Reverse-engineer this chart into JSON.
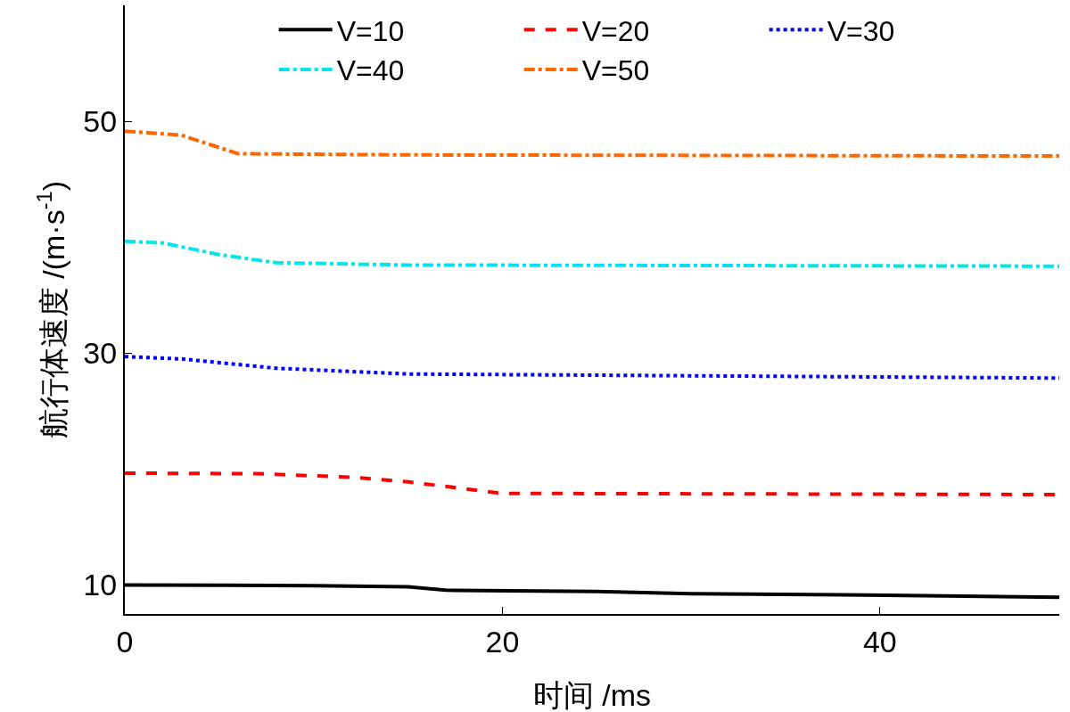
{
  "chart_data": {
    "type": "line",
    "xlabel": "时间 /ms",
    "ylabel": "航行体速度 /(m·s$^{-1}$)",
    "xlim": [
      0,
      49.5
    ],
    "ylim": [
      7.5,
      60
    ],
    "xticks": [
      0,
      20,
      40
    ],
    "yticks": [
      10,
      30,
      50
    ],
    "grid": false,
    "legend": "top",
    "marker": "none",
    "series": [
      {
        "name": "V=10",
        "color": "#000000",
        "line_style": "solid",
        "x": [
          0,
          10,
          15,
          17,
          25,
          30,
          38,
          49.5
        ],
        "values": [
          10,
          9.95,
          9.85,
          9.55,
          9.45,
          9.25,
          9.15,
          8.95
        ]
      },
      {
        "name": "V=20",
        "color": "#ff0000",
        "line_style": "dashed",
        "x": [
          0,
          7,
          12,
          15,
          20,
          49.5
        ],
        "values": [
          19.65,
          19.6,
          19.3,
          18.9,
          17.9,
          17.8
        ]
      },
      {
        "name": "V=30",
        "color": "#0000ff",
        "line_style": "dotted",
        "x": [
          0,
          3,
          8,
          15,
          49.5
        ],
        "values": [
          29.7,
          29.5,
          28.7,
          28.2,
          27.85
        ]
      },
      {
        "name": "V=40",
        "color": "#00e5ee",
        "line_style": "dashdot",
        "x": [
          0,
          2,
          5,
          8,
          15,
          49.5
        ],
        "values": [
          39.65,
          39.5,
          38.5,
          37.8,
          37.6,
          37.5
        ]
      },
      {
        "name": "V=50",
        "color": "#ff6600",
        "line_style": "dashdot",
        "x": [
          0,
          3,
          6,
          15,
          49.5
        ],
        "values": [
          49.15,
          48.8,
          47.2,
          47.1,
          47.0
        ]
      }
    ]
  }
}
